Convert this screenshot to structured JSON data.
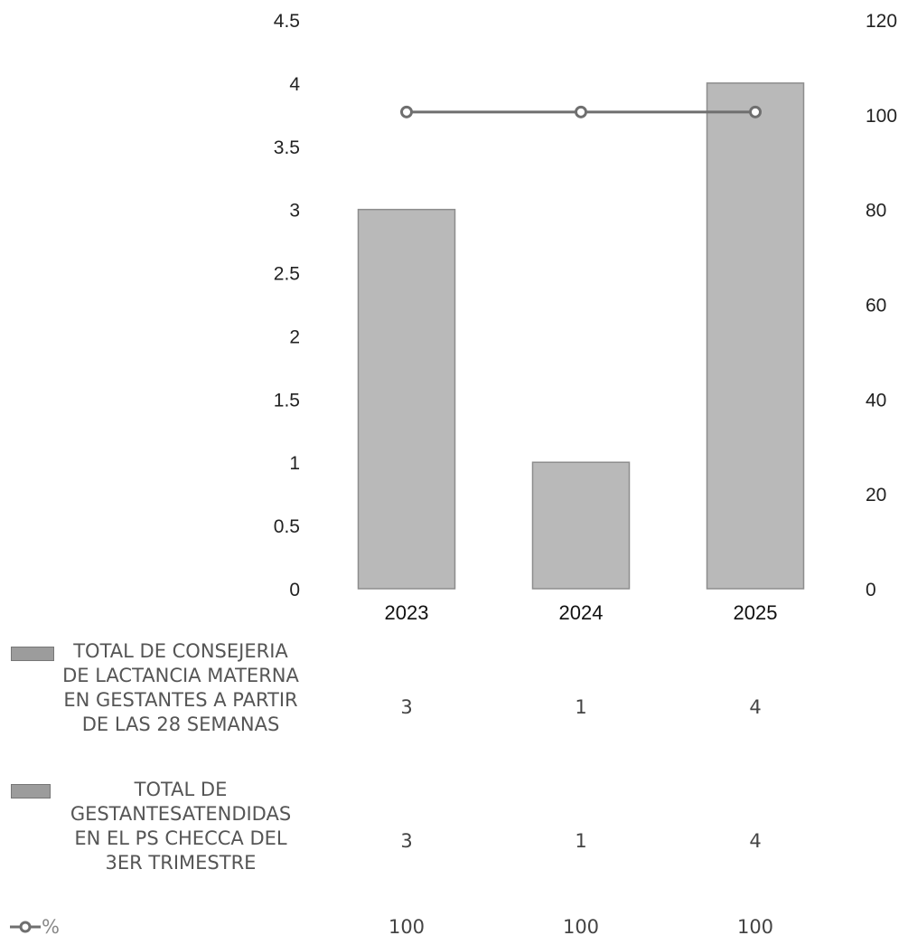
{
  "chart_data": {
    "type": "bar",
    "categories": [
      "2023",
      "2024",
      "2025"
    ],
    "series": [
      {
        "name": "TOTAL DE CONSEJERIA DE LACTANCIA MATERNA EN GESTANTES A PARTIR DE LAS 28 SEMANAS",
        "name_lines": [
          "TOTAL DE CONSEJERIA",
          "DE LACTANCIA MATERNA",
          "EN GESTANTES A PARTIR",
          "DE LAS 28 SEMANAS"
        ],
        "type": "bar",
        "axis": "left",
        "values": [
          3,
          1,
          4
        ],
        "value_labels": [
          "3",
          "1",
          "4"
        ]
      },
      {
        "name": "TOTAL DE GESTANTESATENDIDAS EN EL PS CHECCA DEL 3ER TRIMESTRE",
        "name_lines": [
          "TOTAL DE",
          "GESTANTESATENDIDAS",
          "EN EL PS CHECCA DEL",
          "3ER TRIMESTRE"
        ],
        "type": "table-only",
        "values": [
          3,
          1,
          4
        ],
        "value_labels": [
          "3",
          "1",
          "4"
        ]
      },
      {
        "name": "%",
        "type": "line",
        "axis": "right",
        "values": [
          100,
          100,
          100
        ],
        "value_labels": [
          "100",
          "100",
          "100"
        ]
      }
    ],
    "y_left": {
      "ylim": [
        0,
        4.5
      ],
      "ticks": [
        "0",
        "0.5",
        "1",
        "1.5",
        "2",
        "2.5",
        "3",
        "3.5",
        "4",
        "4.5"
      ]
    },
    "y_right": {
      "ylim": [
        0,
        120
      ],
      "ticks": [
        "0",
        "20",
        "40",
        "60",
        "80",
        "100",
        "120"
      ]
    },
    "legend": "data-table-below",
    "grid": false,
    "colors": {
      "bar": "#b9b9b9",
      "line": "#6f6f6f"
    }
  }
}
